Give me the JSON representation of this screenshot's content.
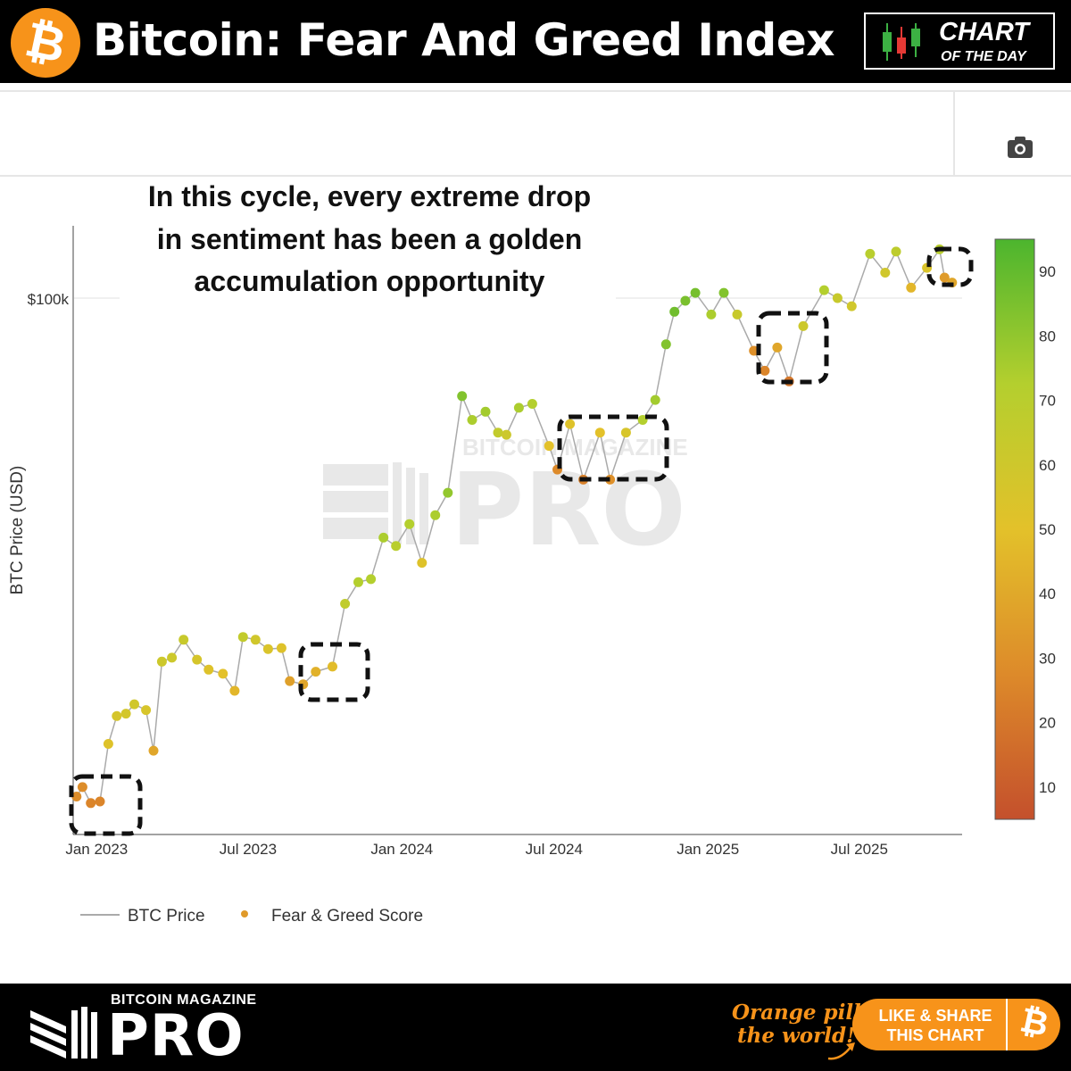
{
  "header": {
    "title": "Bitcoin: Fear And Greed Index",
    "logo_symbol": "₿",
    "badge_line1": "CHART",
    "badge_line2": "OF THE DAY"
  },
  "toolbar": {
    "camera_icon": "camera-icon"
  },
  "annotation": {
    "line1": "In this cycle, every extreme drop",
    "line2": "in sentiment has been a golden",
    "line3": "accumulation opportunity"
  },
  "watermark": {
    "small": "BITCOIN MAGAZINE",
    "big": "PRO"
  },
  "footer": {
    "brand_small": "BITCOIN MAGAZINE",
    "brand_big": "PRO",
    "slogan_line1": "Orange pill",
    "slogan_line2": "the world!",
    "share_line1": "LIKE & SHARE",
    "share_line2": "THIS CHART",
    "share_symbol": "₿"
  },
  "colors": {
    "bitcoin_orange": "#f7931a",
    "scale_low": "#c4502c",
    "scale_mid": "#e3c12a",
    "scale_high": "#4cb52e",
    "price_line": "#aaaaaa"
  },
  "chart_data": {
    "type": "scatter",
    "ylabel": "BTC Price (USD)",
    "xlabel": "",
    "y_scale": "log",
    "y_tick_labels": [
      "$100k"
    ],
    "y_tick_values": [
      100000
    ],
    "x_tick_labels": [
      "Jan 2023",
      "Jul 2023",
      "Jan 2024",
      "Jul 2024",
      "Jan 2025",
      "Jul 2025"
    ],
    "x_tick_dates": [
      "2023-01-01",
      "2023-07-01",
      "2024-01-01",
      "2024-07-01",
      "2025-01-01",
      "2025-07-01"
    ],
    "colorbar": {
      "ticks": [
        90,
        80,
        70,
        60,
        50,
        40,
        30,
        20,
        10
      ],
      "range": [
        5,
        95
      ]
    },
    "legend": [
      {
        "name": "BTC Price",
        "kind": "line"
      },
      {
        "name": "Fear & Greed Score",
        "kind": "marker"
      }
    ],
    "legend_position": "bottom-left",
    "grid": true,
    "series": [
      {
        "name": "BTC Price",
        "points": [
          [
            "2022-12-08",
            17200,
            31
          ],
          [
            "2022-12-15",
            17800,
            31
          ],
          [
            "2022-12-25",
            16800,
            28
          ],
          [
            "2023-01-05",
            16900,
            28
          ],
          [
            "2023-01-15",
            20800,
            52
          ],
          [
            "2023-01-25",
            23000,
            56
          ],
          [
            "2023-02-05",
            23200,
            57
          ],
          [
            "2023-02-15",
            24000,
            58
          ],
          [
            "2023-03-01",
            23500,
            55
          ],
          [
            "2023-03-10",
            20300,
            40
          ],
          [
            "2023-03-20",
            28000,
            60
          ],
          [
            "2023-04-01",
            28400,
            60
          ],
          [
            "2023-04-15",
            30300,
            62
          ],
          [
            "2023-05-01",
            28200,
            56
          ],
          [
            "2023-05-15",
            27200,
            52
          ],
          [
            "2023-06-01",
            26800,
            50
          ],
          [
            "2023-06-15",
            25200,
            46
          ],
          [
            "2023-06-25",
            30600,
            64
          ],
          [
            "2023-07-10",
            30300,
            58
          ],
          [
            "2023-07-25",
            29300,
            54
          ],
          [
            "2023-08-10",
            29400,
            52
          ],
          [
            "2023-08-20",
            26100,
            38
          ],
          [
            "2023-09-05",
            25800,
            40
          ],
          [
            "2023-09-20",
            27000,
            44
          ],
          [
            "2023-10-10",
            27500,
            48
          ],
          [
            "2023-10-25",
            34500,
            65
          ],
          [
            "2023-11-10",
            37300,
            70
          ],
          [
            "2023-11-25",
            37700,
            70
          ],
          [
            "2023-12-10",
            43800,
            72
          ],
          [
            "2023-12-25",
            42500,
            68
          ],
          [
            "2024-01-10",
            46000,
            70
          ],
          [
            "2024-01-25",
            40000,
            52
          ],
          [
            "2024-02-10",
            47500,
            72
          ],
          [
            "2024-02-25",
            51500,
            78
          ],
          [
            "2024-03-13",
            73000,
            82
          ],
          [
            "2024-03-25",
            67000,
            72
          ],
          [
            "2024-04-10",
            69000,
            74
          ],
          [
            "2024-04-25",
            64000,
            64
          ],
          [
            "2024-05-05",
            63500,
            60
          ],
          [
            "2024-05-20",
            70000,
            72
          ],
          [
            "2024-06-05",
            71000,
            70
          ],
          [
            "2024-06-25",
            61000,
            50
          ],
          [
            "2024-07-05",
            56000,
            30
          ],
          [
            "2024-07-20",
            66000,
            52
          ],
          [
            "2024-08-05",
            54000,
            26
          ],
          [
            "2024-08-25",
            64000,
            50
          ],
          [
            "2024-09-06",
            54000,
            32
          ],
          [
            "2024-09-25",
            64000,
            55
          ],
          [
            "2024-10-15",
            67000,
            70
          ],
          [
            "2024-10-30",
            72000,
            74
          ],
          [
            "2024-11-12",
            88000,
            82
          ],
          [
            "2024-11-22",
            99000,
            86
          ],
          [
            "2024-12-05",
            103000,
            84
          ],
          [
            "2024-12-17",
            106000,
            85
          ],
          [
            "2025-01-05",
            98000,
            72
          ],
          [
            "2025-01-20",
            106000,
            82
          ],
          [
            "2025-02-05",
            98000,
            62
          ],
          [
            "2025-02-25",
            86000,
            32
          ],
          [
            "2025-03-10",
            80000,
            28
          ],
          [
            "2025-03-25",
            87000,
            40
          ],
          [
            "2025-04-08",
            77000,
            22
          ],
          [
            "2025-04-25",
            94000,
            60
          ],
          [
            "2025-05-20",
            107000,
            70
          ],
          [
            "2025-06-05",
            104000,
            62
          ],
          [
            "2025-06-22",
            101000,
            58
          ],
          [
            "2025-07-14",
            122000,
            68
          ],
          [
            "2025-08-01",
            114000,
            58
          ],
          [
            "2025-08-14",
            123000,
            66
          ],
          [
            "2025-09-01",
            108000,
            46
          ],
          [
            "2025-09-20",
            116000,
            54
          ],
          [
            "2025-10-05",
            124000,
            68
          ],
          [
            "2025-10-11",
            112000,
            36
          ],
          [
            "2025-10-20",
            110000,
            40
          ]
        ]
      }
    ]
  }
}
